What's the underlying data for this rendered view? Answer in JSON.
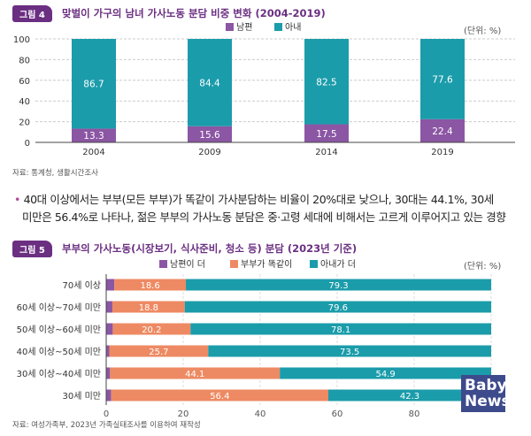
{
  "figure4": {
    "badge": "그림 4",
    "title": "맞벌이 가구의 남녀 가사노동 분담 비중 변화 (2004-2019)",
    "unit": "(단위: %)",
    "source": "자료: 통계청, 생활시간조사"
  },
  "note": {
    "bullet": "•",
    "line1": "40대 이상에서는 부부(모든 부부)가 똑같이 가사분담하는 비율이 20%대로 낮으나, 30대는 44.1%, 30세",
    "line2": "미만은 56.4%로 나타나, 젊은 부부의 가사노동 분담은 중·고령 세대에 비해서는 고르게 이루어지고 있는 경향"
  },
  "figure5": {
    "badge": "그림 5",
    "title": "부부의 가사노동(시장보기, 식사준비, 청소 등) 분담 (2023년 기준)",
    "unit": "(단위: %)",
    "source": "자료: 여성가족부, 2023년 가족실태조사를 이용하여 재작성"
  },
  "logo": {
    "line1": "Baby",
    "line2": "News"
  },
  "chart_data": [
    {
      "type": "bar",
      "stacked": true,
      "orientation": "vertical",
      "categories": [
        "2004",
        "2009",
        "2014",
        "2019"
      ],
      "series": [
        {
          "name": "남편",
          "color": "#8b56a3",
          "values": [
            13.3,
            15.6,
            17.5,
            22.4
          ]
        },
        {
          "name": "아내",
          "color": "#1b9caa",
          "values": [
            86.7,
            84.4,
            82.5,
            77.6
          ]
        }
      ],
      "yticks": [
        0,
        20,
        40,
        60,
        80,
        100
      ],
      "ylim": [
        0,
        100
      ],
      "grid": true,
      "legend": "top-center"
    },
    {
      "type": "bar",
      "stacked": true,
      "orientation": "horizontal",
      "categories": [
        "70세 이상",
        "60세 이상~70세 미만",
        "50세 이상~60세 미만",
        "40세 이상~50세 미만",
        "30세 이상~40세 미만",
        "30세 미만"
      ],
      "series": [
        {
          "name": "남편이 더",
          "color": "#8b56a3",
          "values": [
            2.1,
            1.6,
            1.7,
            0.8,
            1.0,
            1.3
          ],
          "labeled": false
        },
        {
          "name": "부부가 똑같이",
          "color": "#ee8a63",
          "values": [
            18.6,
            18.8,
            20.2,
            25.7,
            44.1,
            56.4
          ],
          "labeled": true
        },
        {
          "name": "아내가 더",
          "color": "#1b9caa",
          "values": [
            79.3,
            79.6,
            78.1,
            73.5,
            54.9,
            42.3
          ],
          "labeled": true
        }
      ],
      "xticks": [
        "0",
        "20",
        "40",
        "60",
        "80",
        ""
      ],
      "xlim": [
        0,
        100
      ],
      "grid": true,
      "legend": "top-center"
    }
  ]
}
